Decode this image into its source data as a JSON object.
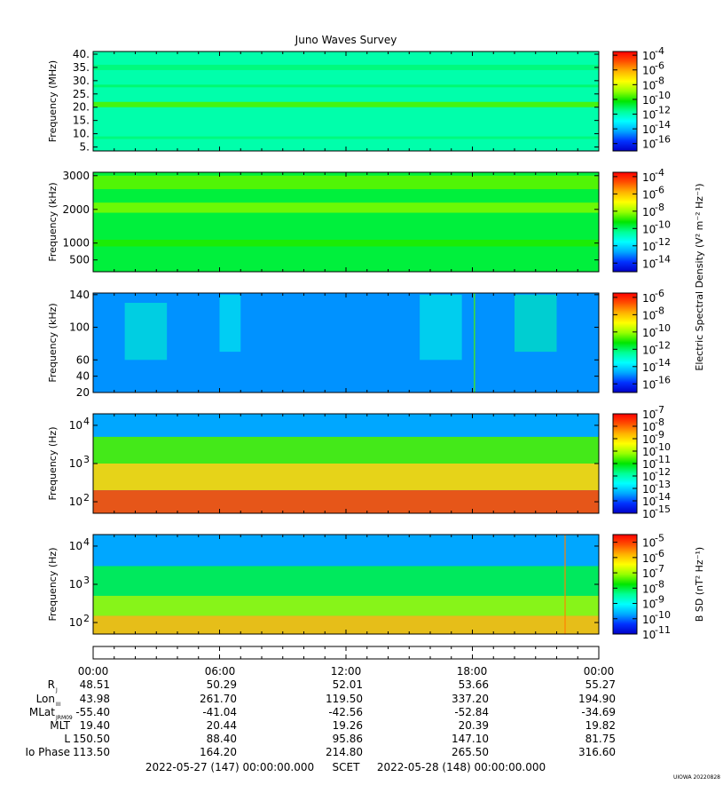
{
  "title": "Juno Waves Survey",
  "colors": {
    "palette": [
      "#0000c8",
      "#0032ff",
      "#00aaff",
      "#00ffff",
      "#00ff96",
      "#00e600",
      "#96ff00",
      "#ffff00",
      "#ffb400",
      "#ff5000",
      "#ff0000"
    ]
  },
  "chart_data": [
    {
      "type": "heatmap",
      "name": "panel-1",
      "ylabel": "Frequency (MHz)",
      "yscale": "linear",
      "ylim": [
        3.5,
        41
      ],
      "yticks": [
        "40.",
        "35.",
        "30.",
        "25.",
        "20.",
        "15.",
        "10.",
        "5."
      ],
      "ytick_values": [
        40,
        35,
        30,
        25,
        20,
        15,
        10,
        5
      ],
      "xrange_hours": [
        0,
        24
      ],
      "base_level": 0.38,
      "features": [
        {
          "kind": "band",
          "from": 20,
          "to": 22,
          "level": 0.55
        },
        {
          "kind": "band",
          "from": 27.5,
          "to": 28.5,
          "level": 0.43
        },
        {
          "kind": "band",
          "from": 34,
          "to": 36,
          "level": 0.42
        },
        {
          "kind": "band",
          "from": 8,
          "to": 9,
          "level": 0.42
        }
      ],
      "colorbar": {
        "ticks": [
          "10-4",
          "10-6",
          "10-8",
          "10-10",
          "10-12",
          "10-14",
          "10-16"
        ],
        "exponent_values": [
          -4,
          -6,
          -8,
          -10,
          -12,
          -14,
          -16
        ],
        "range": [
          -17,
          -3.5
        ]
      }
    },
    {
      "type": "heatmap",
      "name": "panel-2",
      "ylabel": "Frequency (kHz)",
      "yscale": "linear",
      "ylim": [
        150,
        3100
      ],
      "yticks": [
        "3000",
        "2000",
        "1000",
        "500"
      ],
      "ytick_values": [
        3000,
        2000,
        1000,
        500
      ],
      "xrange_hours": [
        0,
        24
      ],
      "base_level": 0.46,
      "features": [
        {
          "kind": "band",
          "from": 2600,
          "to": 3000,
          "level": 0.56
        },
        {
          "kind": "band",
          "from": 1900,
          "to": 2200,
          "level": 0.58
        },
        {
          "kind": "band",
          "from": 900,
          "to": 1100,
          "level": 0.52
        }
      ],
      "colorbar": {
        "ticks": [
          "10-4",
          "10-6",
          "10-8",
          "10-10",
          "10-12",
          "10-14"
        ],
        "exponent_values": [
          -4,
          -6,
          -8,
          -10,
          -12,
          -14
        ],
        "range": [
          -15,
          -3.5
        ]
      }
    },
    {
      "type": "heatmap",
      "name": "panel-3",
      "ylabel": "Frequency (kHz)",
      "yscale": "linear",
      "ylim": [
        20,
        142
      ],
      "yticks": [
        "140",
        "100",
        "60",
        "40",
        "20"
      ],
      "ytick_values": [
        140,
        100,
        60,
        40,
        20
      ],
      "xrange_hours": [
        0,
        24
      ],
      "base_level": 0.18,
      "features": [
        {
          "kind": "patch",
          "x": [
            1.5,
            3.5
          ],
          "y": [
            60,
            130
          ],
          "level": 0.35
        },
        {
          "kind": "patch",
          "x": [
            6,
            7
          ],
          "y": [
            70,
            140
          ],
          "level": 0.32
        },
        {
          "kind": "patch",
          "x": [
            15.5,
            17.5
          ],
          "y": [
            60,
            140
          ],
          "level": 0.33
        },
        {
          "kind": "patch",
          "x": [
            20,
            22
          ],
          "y": [
            70,
            140
          ],
          "level": 0.38
        },
        {
          "kind": "line",
          "x": 18.1,
          "level": 0.55
        }
      ],
      "colorbar": {
        "ticks": [
          "10-6",
          "10-8",
          "10-10",
          "10-12",
          "10-14",
          "10-16"
        ],
        "exponent_values": [
          -6,
          -8,
          -10,
          -12,
          -14,
          -16
        ],
        "range": [
          -17,
          -5.5
        ]
      }
    },
    {
      "type": "heatmap",
      "name": "panel-4",
      "ylabel": "Frequency (Hz)",
      "yscale": "log",
      "ylim": [
        50,
        20000
      ],
      "yticks": [
        "10",
        "10",
        "10"
      ],
      "ytick_exponents": [
        "4",
        "3",
        "2"
      ],
      "ytick_values": [
        10000,
        1000,
        100
      ],
      "xrange_hours": [
        0,
        24
      ],
      "base_level": 0.18,
      "features": [
        {
          "kind": "band",
          "from": 5000,
          "to": 20000,
          "level": 0.2
        },
        {
          "kind": "band",
          "from": 1000,
          "to": 5000,
          "level": 0.55
        },
        {
          "kind": "band",
          "from": 200,
          "to": 1000,
          "level": 0.75
        },
        {
          "kind": "band",
          "from": 50,
          "to": 200,
          "level": 0.9
        }
      ],
      "colorbar": {
        "ticks": [
          "10-7",
          "10-8",
          "10-9",
          "10-10",
          "10-11",
          "10-12",
          "10-13",
          "10-14",
          "10-15"
        ],
        "exponent_values": [
          -7,
          -8,
          -9,
          -10,
          -11,
          -12,
          -13,
          -14,
          -15
        ],
        "range": [
          -15,
          -7
        ]
      }
    },
    {
      "type": "heatmap",
      "name": "panel-5",
      "ylabel": "Frequency (Hz)",
      "yscale": "log",
      "ylim": [
        50,
        20000
      ],
      "yticks": [
        "10",
        "10",
        "10"
      ],
      "ytick_exponents": [
        "4",
        "3",
        "2"
      ],
      "ytick_values": [
        10000,
        1000,
        100
      ],
      "xrange_hours": [
        0,
        24
      ],
      "base_level": 0.18,
      "features": [
        {
          "kind": "band",
          "from": 3000,
          "to": 20000,
          "level": 0.2
        },
        {
          "kind": "band",
          "from": 500,
          "to": 3000,
          "level": 0.45
        },
        {
          "kind": "band",
          "from": 150,
          "to": 500,
          "level": 0.6
        },
        {
          "kind": "band",
          "from": 50,
          "to": 150,
          "level": 0.78
        },
        {
          "kind": "line",
          "x": 22.4,
          "level": 0.85
        }
      ],
      "colorbar": {
        "ticks": [
          "10-5",
          "10-6",
          "10-7",
          "10-8",
          "10-9",
          "10-10",
          "10-11"
        ],
        "exponent_values": [
          -5,
          -6,
          -7,
          -8,
          -9,
          -10,
          -11
        ],
        "range": [
          -11,
          -4.5
        ]
      }
    }
  ],
  "colorbar_labels": {
    "electric": "Electric Spectral Density (V² m⁻² Hz⁻¹)",
    "magnetic": "B SD (nT² Hz⁻¹)"
  },
  "ephemeris": {
    "time_labels": [
      "00:00",
      "06:00",
      "12:00",
      "18:00",
      "00:00"
    ],
    "rows": [
      {
        "label": "R",
        "sub": "J",
        "values": [
          "48.51",
          "50.29",
          "52.01",
          "53.66",
          "55.27"
        ]
      },
      {
        "label": "Lon",
        "sub": "III",
        "values": [
          "43.98",
          "261.70",
          "119.50",
          "337.20",
          "194.90"
        ]
      },
      {
        "label": "MLat",
        "sub": "JRM09",
        "values": [
          "-55.40",
          "-41.04",
          "-42.56",
          "-52.84",
          "-34.69"
        ]
      },
      {
        "label": "MLT",
        "sub": "",
        "values": [
          "19.40",
          "20.44",
          "19.26",
          "20.39",
          "19.82"
        ]
      },
      {
        "label": "L",
        "sub": "",
        "values": [
          "150.50",
          "88.40",
          "95.86",
          "147.10",
          "81.75"
        ]
      },
      {
        "label": "Io Phase",
        "sub": "",
        "values": [
          "113.50",
          "164.20",
          "214.80",
          "265.50",
          "316.60"
        ]
      }
    ]
  },
  "footer": {
    "start": "2022-05-27 (147) 00:00:00.000",
    "scet": "SCET",
    "end": "2022-05-28 (148) 00:00:00.000",
    "credit": "UIOWA 20220828"
  }
}
